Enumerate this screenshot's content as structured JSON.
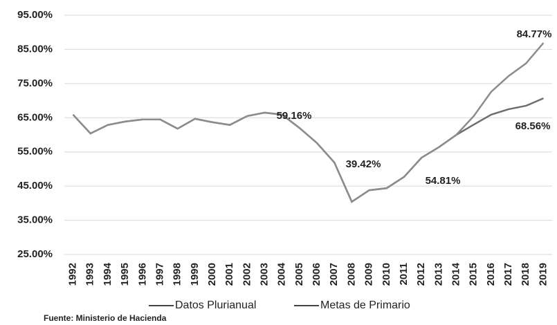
{
  "chart_data": {
    "type": "line",
    "categories": [
      "1992",
      "1993",
      "1994",
      "1995",
      "1996",
      "1997",
      "1998",
      "1999",
      "2000",
      "2001",
      "2002",
      "2003",
      "2004",
      "2005",
      "2006",
      "2007",
      "2008",
      "2009",
      "2010",
      "2011",
      "2012",
      "2013",
      "2014",
      "2015",
      "2016",
      "2017",
      "2018",
      "2019"
    ],
    "series": [
      {
        "name": "Datos Plurianual",
        "color": "#8c8c8c",
        "values": [
          65.9,
          60.4,
          62.9,
          63.9,
          64.5,
          64.5,
          61.8,
          64.7,
          63.7,
          62.9,
          65.5,
          66.5,
          65.9,
          62,
          57.6,
          51.9,
          40.4,
          43.8,
          44.4,
          47.7,
          53.3,
          56.4,
          60,
          65.5,
          72.6,
          77.2,
          80.9,
          86.9
        ]
      },
      {
        "name": "Metas de Primario",
        "color": "#6e6e6e",
        "values": [
          65.9,
          60.4,
          62.9,
          63.9,
          64.5,
          64.5,
          61.8,
          64.7,
          63.7,
          62.9,
          65.5,
          66.5,
          65.9,
          62,
          57.6,
          51.9,
          40.4,
          43.8,
          44.4,
          47.7,
          53.3,
          56.4,
          60,
          63,
          65.9,
          67.5,
          68.5,
          70.7
        ]
      }
    ],
    "ylim": [
      25,
      95
    ],
    "yticks": [
      {
        "value": 25,
        "label": "25.00%"
      },
      {
        "value": 35,
        "label": "35.00%"
      },
      {
        "value": 45,
        "label": "45.00%"
      },
      {
        "value": 55,
        "label": "55.00%"
      },
      {
        "value": 65,
        "label": "65.00%"
      },
      {
        "value": 75,
        "label": "75.00%"
      },
      {
        "value": 85,
        "label": "85.00%"
      },
      {
        "value": 95,
        "label": "95.00%"
      }
    ],
    "grid": true,
    "annotations": [
      "59.16%",
      "39.42%",
      "54.81%",
      "84.77%",
      "68.56%"
    ],
    "source": "Fuente: Ministerio de Hacienda"
  }
}
